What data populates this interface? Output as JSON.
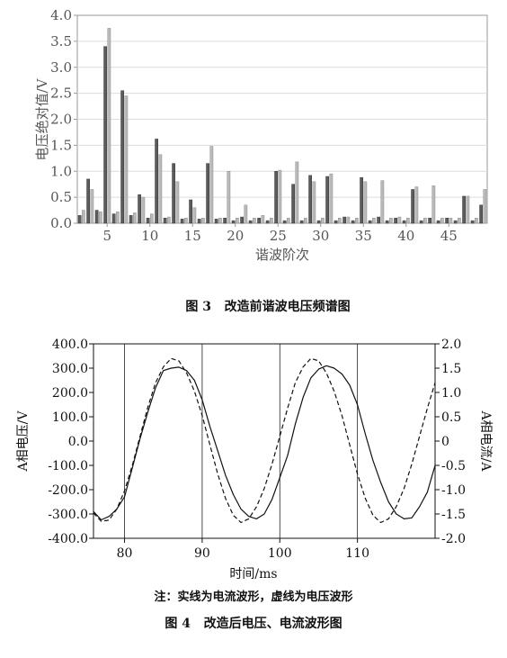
{
  "chart_data": [
    {
      "type": "bar",
      "title": "",
      "xlabel": "谐波阶次",
      "ylabel": "电压绝对值/V",
      "xlim": [
        1.5,
        49.5
      ],
      "ylim": [
        0,
        4.0
      ],
      "xticks": [
        "5",
        "10",
        "15",
        "20",
        "25",
        "30",
        "35",
        "40",
        "45"
      ],
      "yticks": [
        "0.0",
        "0.5",
        "1.0",
        "1.5",
        "2.0",
        "2.5",
        "3.0",
        "3.5",
        "4.0"
      ],
      "grid": "horizontal",
      "x": [
        2,
        3,
        4,
        5,
        6,
        7,
        8,
        9,
        10,
        11,
        12,
        13,
        14,
        15,
        16,
        17,
        18,
        19,
        20,
        21,
        22,
        23,
        24,
        25,
        26,
        27,
        28,
        29,
        30,
        31,
        32,
        33,
        34,
        35,
        36,
        37,
        38,
        39,
        40,
        41,
        42,
        43,
        44,
        45,
        46,
        47,
        48,
        49
      ],
      "series": [
        {
          "values": [
            0.15,
            0.85,
            0.25,
            3.4,
            0.18,
            2.55,
            0.15,
            0.55,
            0.1,
            1.62,
            0.1,
            1.15,
            0.08,
            0.45,
            0.08,
            1.15,
            0.08,
            0.1,
            0.05,
            0.12,
            0.05,
            0.1,
            0.05,
            1.0,
            0.05,
            0.75,
            0.05,
            0.92,
            0.05,
            0.9,
            0.05,
            0.12,
            0.05,
            0.88,
            0.05,
            0.12,
            0.05,
            0.1,
            0.05,
            0.65,
            0.05,
            0.1,
            0.05,
            0.1,
            0.05,
            0.52,
            0.05,
            0.35
          ]
        },
        {
          "values": [
            0.25,
            0.65,
            0.22,
            3.75,
            0.22,
            2.45,
            0.2,
            0.5,
            0.18,
            1.32,
            0.12,
            0.8,
            0.1,
            0.3,
            0.1,
            1.48,
            0.1,
            1.0,
            0.1,
            0.35,
            0.1,
            0.15,
            0.1,
            1.02,
            0.1,
            1.18,
            0.1,
            0.8,
            0.1,
            0.95,
            0.1,
            0.12,
            0.1,
            0.8,
            0.1,
            0.82,
            0.1,
            0.12,
            0.1,
            0.7,
            0.1,
            0.72,
            0.1,
            0.1,
            0.1,
            0.52,
            0.1,
            0.65
          ]
        }
      ],
      "colors": [
        "#5c5c5c",
        "#b9b9b9"
      ],
      "caption": "图 3   改造前谐波电压频谱图"
    },
    {
      "type": "line",
      "title": "",
      "xlabel": "时间/ms",
      "ylabel": "A相电压/V",
      "y2label": "A相电流/A",
      "xlim": [
        76,
        120
      ],
      "ylim": [
        -400,
        400
      ],
      "y2lim": [
        -2.0,
        2.0
      ],
      "xticks": [
        "80",
        "90",
        "100",
        "110"
      ],
      "yticks": [
        "400.0",
        "300.0",
        "200.0",
        "100.0",
        "0.0",
        "-100.0",
        "-200.0",
        "-300.0",
        "-400.0"
      ],
      "y2ticks": [
        "2.0",
        "1.5",
        "1.0",
        "0.5",
        "0",
        "-0.5",
        "-1.0",
        "-1.5",
        "-2.0"
      ],
      "grid": "vertical",
      "x": [
        76,
        77,
        78,
        79,
        80,
        81,
        82,
        83,
        84,
        85,
        86,
        87,
        88,
        89,
        90,
        91,
        92,
        93,
        94,
        95,
        96,
        97,
        98,
        99,
        100,
        101,
        102,
        103,
        104,
        105,
        106,
        107,
        108,
        109,
        110,
        111,
        112,
        113,
        114,
        115,
        116,
        117,
        118,
        119,
        120
      ],
      "series": [
        {
          "axis": "y",
          "style": "dashed",
          "values": [
            -296,
            -330,
            -325,
            -280,
            -205,
            -100,
            20,
            140,
            240,
            305,
            340,
            330,
            280,
            205,
            105,
            -15,
            -135,
            -235,
            -305,
            -335,
            -320,
            -270,
            -195,
            -95,
            20,
            135,
            240,
            305,
            340,
            330,
            280,
            205,
            105,
            -15,
            -135,
            -235,
            -305,
            -335,
            -320,
            -270,
            -195,
            -95,
            20,
            135,
            240
          ]
        },
        {
          "axis": "y2",
          "style": "solid",
          "values": [
            -1.45,
            -1.62,
            -1.55,
            -1.4,
            -1.15,
            -0.55,
            0.05,
            0.6,
            1.1,
            1.45,
            1.5,
            1.52,
            1.45,
            1.25,
            0.85,
            0.3,
            -0.2,
            -0.7,
            -1.1,
            -1.4,
            -1.55,
            -1.6,
            -1.5,
            -1.2,
            -0.75,
            -0.3,
            0.35,
            0.9,
            1.3,
            1.48,
            1.55,
            1.5,
            1.38,
            1.15,
            0.75,
            0.15,
            -0.4,
            -0.85,
            -1.25,
            -1.5,
            -1.6,
            -1.58,
            -1.35,
            -1.05,
            -0.5
          ]
        }
      ],
      "note": "注：实线为电流波形，虚线为电压波形",
      "caption": "图 4   改造后电压、电流波形图"
    }
  ]
}
